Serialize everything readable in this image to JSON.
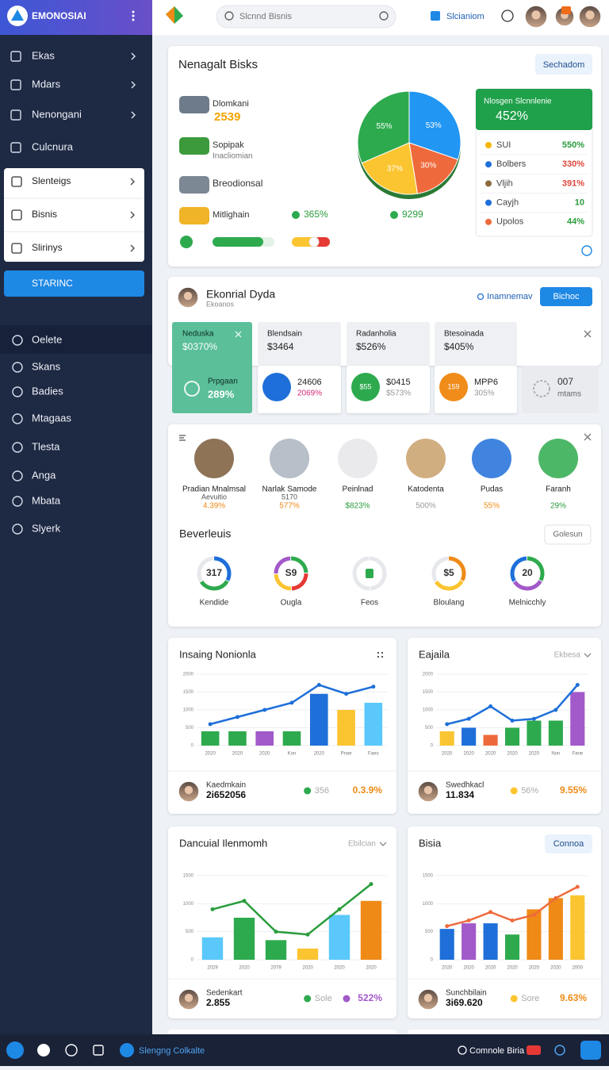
{
  "sidebar": {
    "brand": "EMONOSIAI",
    "nav": [
      "Ekas",
      "Mdars",
      "Nenongani",
      "Culcnura"
    ],
    "group": [
      "Slenteigs",
      "Bisnis",
      "Slirinys"
    ],
    "button": "STARINC",
    "nav2": [
      "Oelete",
      "Skans",
      "Badies",
      "Mtagaas",
      "Tlesta",
      "Anga",
      "Mbata",
      "Slyerk"
    ]
  },
  "topbar": {
    "search": "Slcnnd Bisnis",
    "link": "Slcianiom"
  },
  "overview": {
    "title": "Nenagalt Bisks",
    "button": "Sechadom",
    "items": [
      {
        "name": "Dlomkani",
        "value": "2539"
      },
      {
        "name": "Sopipak",
        "sub": "Inacliomian"
      },
      {
        "name": "Breodionsal"
      },
      {
        "name": "Mitlighain",
        "stat1": "365%",
        "stat2": "9299"
      }
    ],
    "pie": [
      {
        "label": "53%",
        "value": 53,
        "color": "#2196f3"
      },
      {
        "label": "30%",
        "value": 30,
        "color": "#ee6a3c"
      },
      {
        "label": "37%",
        "value": 37,
        "color": "#fbc531"
      },
      {
        "label": "55%",
        "value": 55,
        "color": "#2eaa4e"
      }
    ],
    "legend": {
      "title": "Nlosgen Slcnnlenie",
      "value": "452%",
      "items": [
        {
          "name": "SUI",
          "value": "550%",
          "color": "#f5b700",
          "value_color": "#2a9d3c"
        },
        {
          "name": "Bolbers",
          "value": "330%",
          "color": "#1e6fd9",
          "value_color": "#e0453a"
        },
        {
          "name": "Vljih",
          "value": "391%",
          "color": "#8a6d3b",
          "value_color": "#e0453a"
        },
        {
          "name": "Cayjh",
          "value": "10",
          "color": "#1e6fd9",
          "value_color": "#2a9d3c"
        },
        {
          "name": "Upolos",
          "value": "44%",
          "color": "#ee6a3c",
          "value_color": "#2a9d3c"
        }
      ]
    }
  },
  "team": {
    "title": "Ekonrial Dyda",
    "subtitle": "Ekoanos",
    "link": "Inamnemav",
    "button": "Bichoc",
    "tiles": [
      {
        "name": "Neduska",
        "value": "$0370%",
        "sub": "Prpgaan",
        "sub_value": "289%"
      },
      {
        "name": "Blendsain",
        "value": "$3464",
        "sub": "24606",
        "sub_value": "2069%"
      },
      {
        "name": "Radanholia",
        "value": "$526%",
        "badge": "$55",
        "sub": "$0415",
        "sub_value": "$573%"
      },
      {
        "name": "Btesoinada",
        "value": "$405%",
        "badge": "159",
        "sub": "MPP6",
        "sub_value": "305%"
      }
    ],
    "extra": {
      "value": "007",
      "label": "mtams"
    }
  },
  "products": {
    "items": [
      {
        "name": "Pradian Mnalmsal",
        "sub": "Aevuitio",
        "value": "4.39%",
        "color": "#ef8a17"
      },
      {
        "name": "Narlak Samode",
        "sub": "5170",
        "value": "577%",
        "color": "#ef8a17"
      },
      {
        "name": "Peinlnad",
        "value": "$823%",
        "color": "#2a9d3c"
      },
      {
        "name": "Katodenta",
        "value": "500%",
        "color": "#999999"
      },
      {
        "name": "Pudas",
        "value": "55%",
        "color": "#ef8a17"
      },
      {
        "name": "Faranh",
        "value": "29%",
        "color": "#2a9d3c"
      }
    ],
    "section": "Beverleuis",
    "button": "Golesun",
    "gauges": [
      {
        "value": "317",
        "label": "Kendide"
      },
      {
        "value": "S9",
        "label": "Ougla"
      },
      {
        "label": "Feos"
      },
      {
        "value": "$5",
        "label": "Bloulang"
      },
      {
        "value": "20",
        "label": "Melnicchly"
      }
    ]
  },
  "charts": [
    {
      "type": "bar-line",
      "title": "Insaing Nonionla",
      "categories": [
        "2020",
        "2020",
        "2020",
        "Kon",
        "2020",
        "Pnae",
        "Faeo"
      ],
      "values": [
        400,
        400,
        400,
        400,
        1450,
        1000,
        1200
      ],
      "colors": [
        "#2eaa4e",
        "#2eaa4e",
        "#a259c9",
        "#2eaa4e",
        "#1e6fd9",
        "#fbc531",
        "#5ac8fa"
      ],
      "line": {
        "values": [
          600,
          800,
          1000,
          1200,
          1700,
          1450,
          1650
        ],
        "color": "#1e6fd9"
      },
      "ylim": [
        0,
        2000
      ],
      "yticks": [
        0,
        500,
        1000,
        1500,
        2000
      ],
      "footer": {
        "name": "Kaedmkain",
        "value": "2i652056",
        "stat1": "356",
        "stat2": "0.3.9%"
      }
    },
    {
      "type": "bar-line",
      "title": "Eajaila",
      "control": "Ekbesa",
      "categories": [
        "2020",
        "2020",
        "2020",
        "2020",
        "2020",
        "Non",
        "Fane"
      ],
      "values": [
        400,
        500,
        300,
        500,
        700,
        700,
        1500
      ],
      "colors": [
        "#fbc531",
        "#1e6fd9",
        "#ee6a3c",
        "#2eaa4e",
        "#2eaa4e",
        "#2eaa4e",
        "#a259c9"
      ],
      "line": {
        "values": [
          600,
          750,
          1100,
          700,
          750,
          1000,
          1700
        ],
        "color": "#1e6fd9"
      },
      "ylim": [
        0,
        2000
      ],
      "yticks": [
        0,
        500,
        1000,
        1500,
        2000
      ],
      "footer": {
        "name": "Swedhkacl",
        "value": "11.834",
        "stat1": "56%",
        "stat2": "9.55%"
      }
    },
    {
      "type": "bar-line",
      "title": "Dancuial Ilenmomh",
      "control": "Ebilcian",
      "categories": [
        "2029",
        "2020",
        "2079",
        "2020",
        "2020",
        "2020"
      ],
      "values": [
        400,
        750,
        350,
        200,
        800,
        1050
      ],
      "colors": [
        "#5ac8fa",
        "#2eaa4e",
        "#2eaa4e",
        "#fbc531",
        "#5ac8fa",
        "#ef8a17"
      ],
      "line": {
        "values": [
          900,
          1050,
          500,
          450,
          900,
          1350
        ],
        "color": "#2a9d3c"
      },
      "ylim": [
        0,
        1500
      ],
      "yticks": [
        0,
        500,
        1000,
        1500
      ],
      "footer": {
        "name": "Sedenkart",
        "value": "2.855",
        "stat1": "Sole",
        "stat2": "522%"
      }
    },
    {
      "type": "bar-line",
      "title": "Bisia",
      "button": "Connoa",
      "categories": [
        "2020",
        "2020",
        "2020",
        "2020",
        "2020",
        "2020",
        "2000"
      ],
      "values": [
        550,
        650,
        650,
        450,
        900,
        1100,
        1150
      ],
      "colors": [
        "#1e6fd9",
        "#a259c9",
        "#1e6fd9",
        "#2eaa4e",
        "#ef8a17",
        "#ef8a17",
        "#fbc531"
      ],
      "line": {
        "values": [
          600,
          700,
          850,
          700,
          800,
          1100,
          1300
        ],
        "color": "#ee6a3c"
      },
      "ylim": [
        0,
        1500
      ],
      "yticks": [
        0,
        500,
        1000,
        1500
      ],
      "footer": {
        "name": "Sunchbilain",
        "value": "3i69.620",
        "stat1": "Sore",
        "stat2": "9.63%"
      }
    }
  ],
  "bottombar": {
    "left": "Slengng Colkalte",
    "right": "Comnole Biria"
  }
}
